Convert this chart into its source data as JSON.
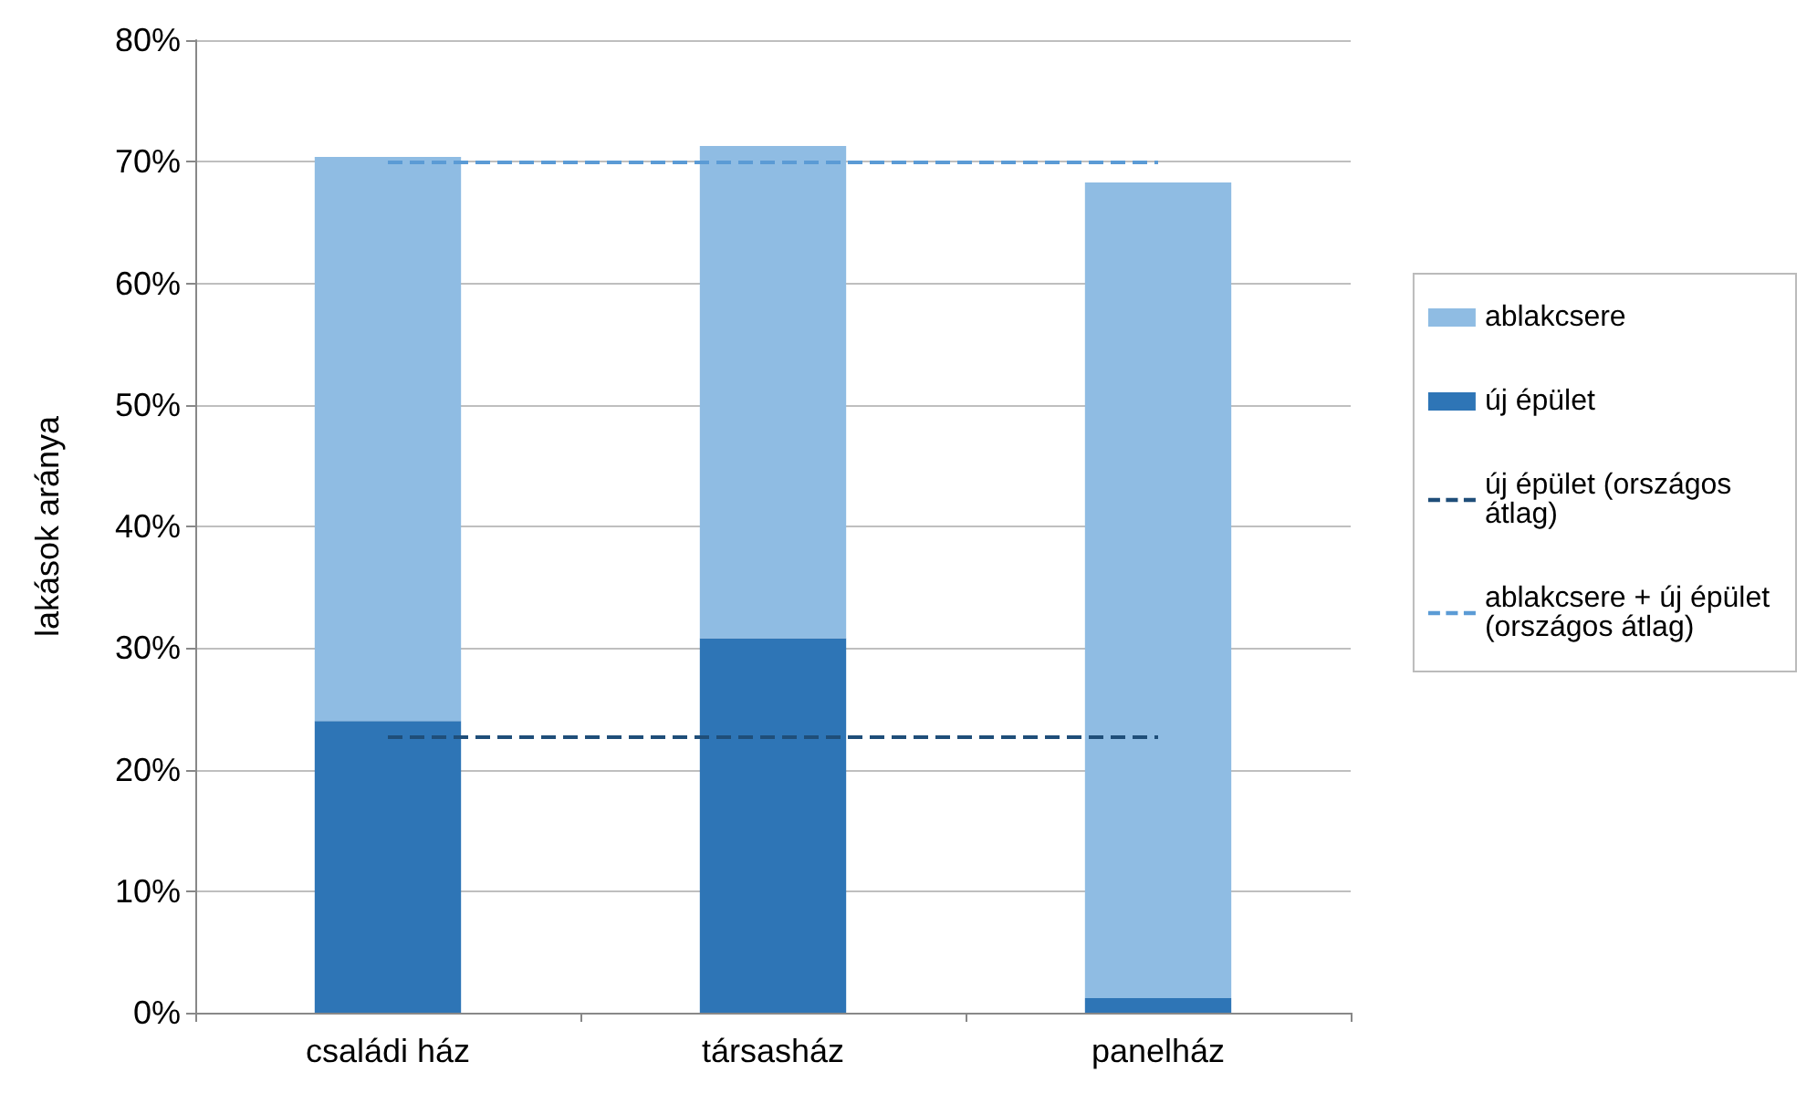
{
  "chart_data": {
    "type": "bar",
    "stacked": true,
    "ylabel": "lakások aránya",
    "categories": [
      "családi ház",
      "társasház",
      "panelház"
    ],
    "series": [
      {
        "name": "új épület",
        "color": "#2e75b6",
        "values": [
          24.0,
          30.8,
          1.2
        ]
      },
      {
        "name": "ablakcsere",
        "color": "#8fbce3",
        "values": [
          46.4,
          40.5,
          67.1
        ]
      }
    ],
    "ylim": [
      0,
      80
    ],
    "yticks": [
      {
        "value": 0,
        "label": "0%"
      },
      {
        "value": 10,
        "label": "10%"
      },
      {
        "value": 20,
        "label": "20%"
      },
      {
        "value": 30,
        "label": "30%"
      },
      {
        "value": 40,
        "label": "40%"
      },
      {
        "value": 50,
        "label": "50%"
      },
      {
        "value": 60,
        "label": "60%"
      },
      {
        "value": 70,
        "label": "70%"
      },
      {
        "value": 80,
        "label": "80%"
      }
    ],
    "ref_lines": [
      {
        "axis": "y",
        "value": 22.7,
        "label": "új épület (országos átlag)",
        "color": "#1f4e79",
        "line_style": "dashed"
      },
      {
        "axis": "y",
        "value": 70.0,
        "label": "ablakcsere + új épület (országos átlag)",
        "color": "#5b9bd5",
        "line_style": "dashed"
      }
    ],
    "grid": "y",
    "legend": "right"
  }
}
